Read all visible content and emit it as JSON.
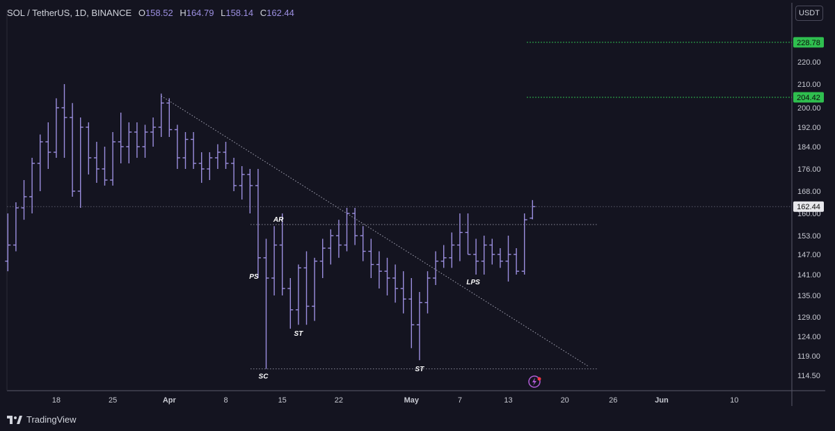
{
  "header": {
    "symbol": "SOL / TetherUS, 1D, BINANCE",
    "o_label": "O",
    "o_value": "158.52",
    "h_label": "H",
    "h_value": "164.79",
    "l_label": "L",
    "l_value": "158.14",
    "c_label": "C",
    "c_value": "162.44"
  },
  "currency_button": "USDT",
  "footer": {
    "brand": "TradingView"
  },
  "colors": {
    "background": "#141420",
    "bar": "#9c8fe0",
    "target": "#2fbf4f",
    "text": "#d1d4dc"
  },
  "chart_data": {
    "type": "ohlc",
    "title": "SOL / TetherUS, 1D, BINANCE",
    "x_ticks": [
      "18",
      "25",
      "Apr",
      "8",
      "15",
      "22",
      "May",
      "7",
      "13",
      "20",
      "26",
      "Jun",
      "10"
    ],
    "y_ticks": [
      "114.50",
      "119.00",
      "124.00",
      "129.00",
      "135.00",
      "141.00",
      "147.00",
      "153.00",
      "160.00",
      "168.00",
      "176.00",
      "184.00",
      "192.00",
      "200.00",
      "210.00",
      "220.00"
    ],
    "ylim": [
      112,
      235
    ],
    "candles": [
      {
        "date": "Mar 12",
        "o": 145,
        "h": 160,
        "l": 142,
        "c": 150
      },
      {
        "date": "Mar 13",
        "o": 150,
        "h": 164,
        "l": 148,
        "c": 162
      },
      {
        "date": "Mar 14",
        "o": 162,
        "h": 172,
        "l": 158,
        "c": 166
      },
      {
        "date": "Mar 15",
        "o": 166,
        "h": 180,
        "l": 160,
        "c": 178
      },
      {
        "date": "Mar 16",
        "o": 178,
        "h": 189,
        "l": 168,
        "c": 186
      },
      {
        "date": "Mar 17",
        "o": 186,
        "h": 194,
        "l": 176,
        "c": 182
      },
      {
        "date": "Mar 18",
        "o": 182,
        "h": 204,
        "l": 180,
        "c": 200
      },
      {
        "date": "Mar 19",
        "o": 200,
        "h": 210,
        "l": 180,
        "c": 196
      },
      {
        "date": "Mar 20",
        "o": 196,
        "h": 202,
        "l": 166,
        "c": 168
      },
      {
        "date": "Mar 21",
        "o": 168,
        "h": 196,
        "l": 162,
        "c": 192
      },
      {
        "date": "Mar 22",
        "o": 192,
        "h": 194,
        "l": 174,
        "c": 180
      },
      {
        "date": "Mar 23",
        "o": 180,
        "h": 186,
        "l": 171,
        "c": 176
      },
      {
        "date": "Mar 24",
        "o": 176,
        "h": 184,
        "l": 170,
        "c": 172
      },
      {
        "date": "Mar 25",
        "o": 172,
        "h": 190,
        "l": 170,
        "c": 186
      },
      {
        "date": "Mar 26",
        "o": 186,
        "h": 198,
        "l": 178,
        "c": 184
      },
      {
        "date": "Mar 27",
        "o": 184,
        "h": 194,
        "l": 178,
        "c": 190
      },
      {
        "date": "Mar 28",
        "o": 190,
        "h": 194,
        "l": 180,
        "c": 184
      },
      {
        "date": "Mar 29",
        "o": 184,
        "h": 193,
        "l": 180,
        "c": 190
      },
      {
        "date": "Mar 30",
        "o": 190,
        "h": 196,
        "l": 184,
        "c": 192
      },
      {
        "date": "Mar 31",
        "o": 192,
        "h": 206,
        "l": 188,
        "c": 202
      },
      {
        "date": "Apr 1",
        "o": 202,
        "h": 204,
        "l": 188,
        "c": 191
      },
      {
        "date": "Apr 2",
        "o": 191,
        "h": 193,
        "l": 176,
        "c": 180
      },
      {
        "date": "Apr 3",
        "o": 180,
        "h": 190,
        "l": 176,
        "c": 187
      },
      {
        "date": "Apr 4",
        "o": 187,
        "h": 190,
        "l": 176,
        "c": 178
      },
      {
        "date": "Apr 5",
        "o": 178,
        "h": 182,
        "l": 171,
        "c": 176
      },
      {
        "date": "Apr 6",
        "o": 176,
        "h": 182,
        "l": 172,
        "c": 180
      },
      {
        "date": "Apr 7",
        "o": 180,
        "h": 185,
        "l": 176,
        "c": 182
      },
      {
        "date": "Apr 8",
        "o": 182,
        "h": 186,
        "l": 176,
        "c": 178
      },
      {
        "date": "Apr 9",
        "o": 178,
        "h": 180,
        "l": 168,
        "c": 170
      },
      {
        "date": "Apr 10",
        "o": 170,
        "h": 177,
        "l": 165,
        "c": 174
      },
      {
        "date": "Apr 11",
        "o": 174,
        "h": 176,
        "l": 160,
        "c": 170
      },
      {
        "date": "Apr 12",
        "o": 170,
        "h": 176,
        "l": 140,
        "c": 146
      },
      {
        "date": "Apr 13",
        "o": 146,
        "h": 152,
        "l": 116,
        "c": 140
      },
      {
        "date": "Apr 14",
        "o": 140,
        "h": 156,
        "l": 135,
        "c": 150
      },
      {
        "date": "Apr 15",
        "o": 150,
        "h": 160,
        "l": 135,
        "c": 137
      },
      {
        "date": "Apr 16",
        "o": 137,
        "h": 140,
        "l": 126,
        "c": 131
      },
      {
        "date": "Apr 17",
        "o": 131,
        "h": 144,
        "l": 127,
        "c": 143
      },
      {
        "date": "Apr 18",
        "o": 143,
        "h": 148,
        "l": 127,
        "c": 132
      },
      {
        "date": "Apr 19",
        "o": 132,
        "h": 146,
        "l": 128,
        "c": 145
      },
      {
        "date": "Apr 20",
        "o": 145,
        "h": 152,
        "l": 140,
        "c": 149
      },
      {
        "date": "Apr 21",
        "o": 149,
        "h": 155,
        "l": 144,
        "c": 153
      },
      {
        "date": "Apr 22",
        "o": 153,
        "h": 158,
        "l": 146,
        "c": 150
      },
      {
        "date": "Apr 23",
        "o": 150,
        "h": 162,
        "l": 148,
        "c": 160
      },
      {
        "date": "Apr 24",
        "o": 160,
        "h": 162,
        "l": 150,
        "c": 153
      },
      {
        "date": "Apr 25",
        "o": 153,
        "h": 156,
        "l": 145,
        "c": 148
      },
      {
        "date": "Apr 26",
        "o": 148,
        "h": 152,
        "l": 140,
        "c": 144
      },
      {
        "date": "Apr 27",
        "o": 144,
        "h": 148,
        "l": 137,
        "c": 142
      },
      {
        "date": "Apr 28",
        "o": 142,
        "h": 146,
        "l": 135,
        "c": 140
      },
      {
        "date": "Apr 29",
        "o": 140,
        "h": 144,
        "l": 133,
        "c": 137
      },
      {
        "date": "Apr 30",
        "o": 137,
        "h": 142,
        "l": 130,
        "c": 134
      },
      {
        "date": "May 1",
        "o": 134,
        "h": 140,
        "l": 121,
        "c": 127
      },
      {
        "date": "May 2",
        "o": 127,
        "h": 136,
        "l": 118,
        "c": 133
      },
      {
        "date": "May 3",
        "o": 133,
        "h": 142,
        "l": 130,
        "c": 140
      },
      {
        "date": "May 4",
        "o": 140,
        "h": 148,
        "l": 138,
        "c": 145
      },
      {
        "date": "May 5",
        "o": 145,
        "h": 150,
        "l": 143,
        "c": 146
      },
      {
        "date": "May 6",
        "o": 146,
        "h": 154,
        "l": 143,
        "c": 150
      },
      {
        "date": "May 7",
        "o": 150,
        "h": 160,
        "l": 145,
        "c": 154
      },
      {
        "date": "May 8",
        "o": 154,
        "h": 160,
        "l": 147,
        "c": 147
      },
      {
        "date": "May 9",
        "o": 147,
        "h": 152,
        "l": 141,
        "c": 145
      },
      {
        "date": "May 10",
        "o": 145,
        "h": 153,
        "l": 141,
        "c": 150
      },
      {
        "date": "May 11",
        "o": 150,
        "h": 152,
        "l": 144,
        "c": 147
      },
      {
        "date": "May 12",
        "o": 147,
        "h": 149,
        "l": 143,
        "c": 145
      },
      {
        "date": "May 13",
        "o": 145,
        "h": 153,
        "l": 139,
        "c": 147
      },
      {
        "date": "May 14",
        "o": 147,
        "h": 149,
        "l": 141,
        "c": 142
      },
      {
        "date": "May 15",
        "o": 142,
        "h": 160,
        "l": 141,
        "c": 158
      },
      {
        "date": "May 16",
        "o": 158.52,
        "h": 164.79,
        "l": 158.14,
        "c": 162.44
      }
    ],
    "levels": [
      {
        "label": "AR",
        "price": 156.5
      },
      {
        "label": "SC",
        "price": 116
      },
      {
        "label": "current",
        "price": 162.44
      },
      {
        "label": "target-1",
        "price": 204.42
      },
      {
        "label": "target-2",
        "price": 228.78
      }
    ],
    "trendline": [
      {
        "date": "Mar 31",
        "price": 205
      },
      {
        "date": "May 23",
        "price": 116.5
      }
    ],
    "annotations": [
      {
        "text": "PS",
        "date": "Apr 12"
      },
      {
        "text": "AR",
        "date": "Apr 14"
      },
      {
        "text": "SC",
        "date": "Apr 13"
      },
      {
        "text": "ST",
        "date": "Apr 17"
      },
      {
        "text": "ST",
        "date": "May 2"
      },
      {
        "text": "LPS",
        "date": "May 9"
      }
    ],
    "price_labels": [
      "228.78",
      "204.42",
      "162.44"
    ],
    "grid": false
  }
}
